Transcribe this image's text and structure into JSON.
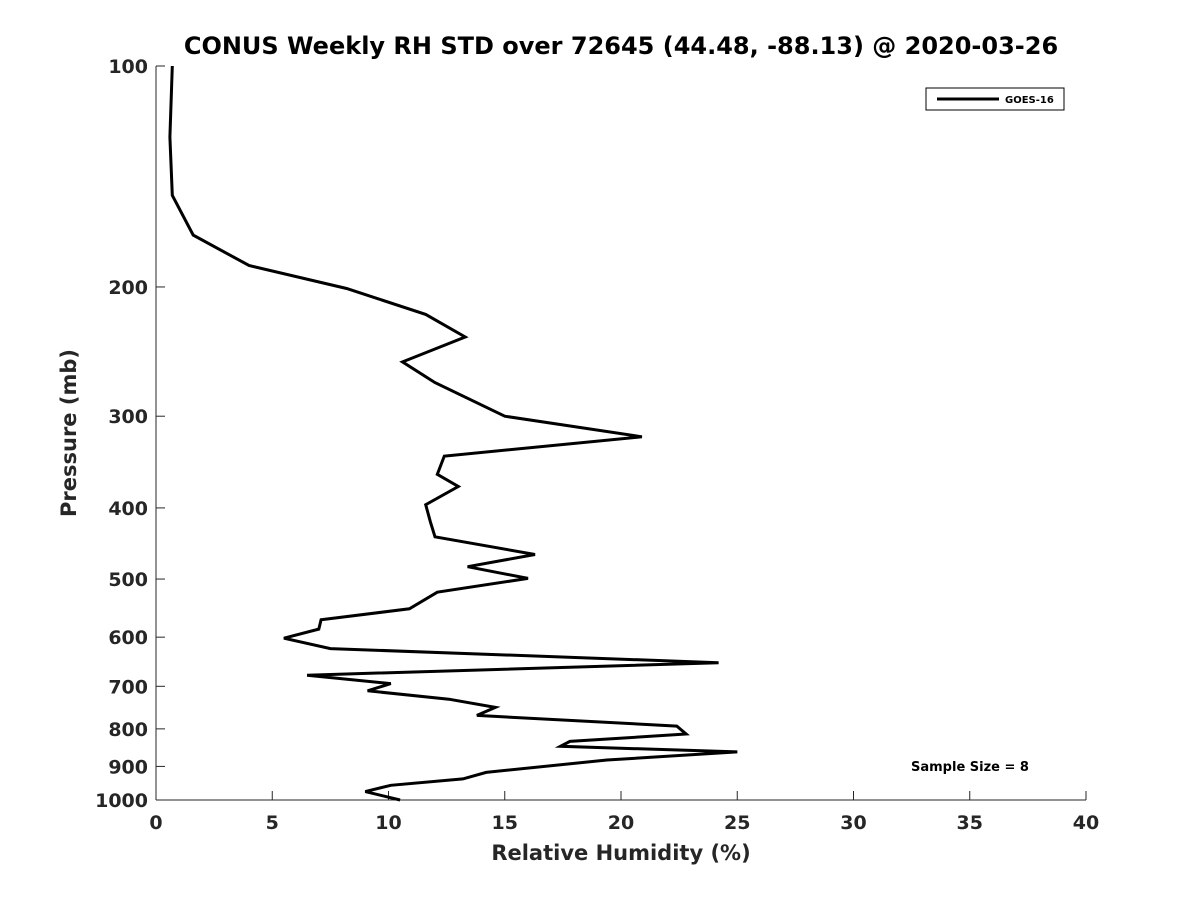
{
  "chart_data": {
    "type": "line",
    "title": "CONUS Weekly RH STD over 72645 (44.48, -88.13) @ 2020-03-26",
    "xlabel": "Relative Humidity (%)",
    "ylabel": "Pressure (mb)",
    "xlim": [
      0,
      40
    ],
    "ylim": [
      100,
      1000
    ],
    "yscale": "log",
    "yreversed": true,
    "grid": false,
    "legend_placement": "top-right",
    "x_ticks": [
      0,
      5,
      10,
      15,
      20,
      25,
      30,
      35,
      40
    ],
    "y_ticks": [
      100,
      200,
      300,
      400,
      500,
      600,
      700,
      800,
      900,
      1000
    ],
    "line_color": "#000000",
    "annotation": "Sample Size = 8",
    "series": [
      {
        "name": "GOES-16",
        "points": [
          [
            0.7,
            100
          ],
          [
            0.6,
            125
          ],
          [
            0.7,
            150
          ],
          [
            1.6,
            170
          ],
          [
            4.0,
            187
          ],
          [
            8.2,
            201
          ],
          [
            11.6,
            218
          ],
          [
            13.3,
            234
          ],
          [
            10.6,
            253
          ],
          [
            12.0,
            270
          ],
          [
            15.0,
            300
          ],
          [
            20.9,
            320
          ],
          [
            12.4,
            340
          ],
          [
            12.1,
            360
          ],
          [
            13.0,
            374
          ],
          [
            11.6,
            396
          ],
          [
            11.8,
            418
          ],
          [
            12.0,
            438
          ],
          [
            16.3,
            463
          ],
          [
            13.4,
            481
          ],
          [
            16.0,
            499
          ],
          [
            12.1,
            521
          ],
          [
            10.9,
            549
          ],
          [
            7.1,
            568
          ],
          [
            7.0,
            585
          ],
          [
            5.5,
            602
          ],
          [
            7.5,
            622
          ],
          [
            24.2,
            650
          ],
          [
            6.5,
            676
          ],
          [
            10.1,
            694
          ],
          [
            9.1,
            710
          ],
          [
            12.6,
            729
          ],
          [
            14.6,
            748
          ],
          [
            13.8,
            767
          ],
          [
            22.4,
            793
          ],
          [
            22.8,
            813
          ],
          [
            17.8,
            832
          ],
          [
            17.4,
            845
          ],
          [
            25.0,
            860
          ],
          [
            19.4,
            882
          ],
          [
            14.2,
            917
          ],
          [
            13.2,
            936
          ],
          [
            10.1,
            955
          ],
          [
            9.0,
            974
          ],
          [
            10.5,
            1000
          ]
        ]
      }
    ]
  }
}
